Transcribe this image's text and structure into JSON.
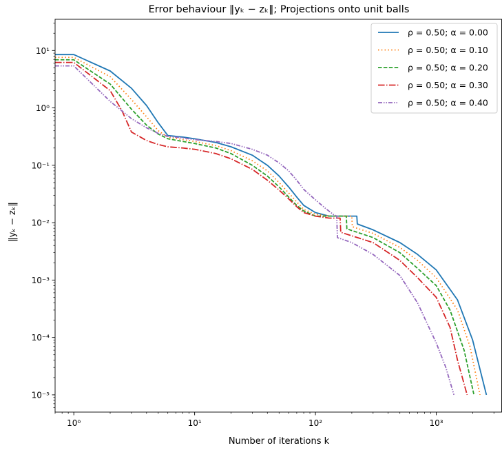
{
  "chart_data": {
    "type": "line",
    "title": "Error behaviour ‖yₖ − zₖ‖; Projections onto unit balls",
    "xlabel": "Number of iterations k",
    "ylabel": "‖yₖ − zₖ‖",
    "xscale": "log",
    "yscale": "log",
    "xlim": [
      0.7,
      3500
    ],
    "ylim": [
      5e-06,
      35
    ],
    "grid": false,
    "legend_position": "top-right",
    "x_ticks": [
      {
        "value": 1,
        "label": "10⁰"
      },
      {
        "value": 10,
        "label": "10¹"
      },
      {
        "value": 100,
        "label": "10²"
      },
      {
        "value": 1000,
        "label": "10³"
      }
    ],
    "y_ticks": [
      {
        "value": 10,
        "label": "10¹"
      },
      {
        "value": 1,
        "label": "10⁰"
      },
      {
        "value": 0.1,
        "label": "10⁻¹"
      },
      {
        "value": 0.01,
        "label": "10⁻²"
      },
      {
        "value": 0.001,
        "label": "10⁻³"
      },
      {
        "value": 0.0001,
        "label": "10⁻⁴"
      },
      {
        "value": 1e-05,
        "label": "10⁻⁵"
      }
    ],
    "series": [
      {
        "name": "ρ = 0.50; α = 0.00",
        "color": "#1f77b4",
        "dash": "solid",
        "points": [
          [
            0.7,
            8.5
          ],
          [
            1,
            8.5
          ],
          [
            2,
            4.4
          ],
          [
            3,
            2.2
          ],
          [
            4,
            1.1
          ],
          [
            5,
            0.55
          ],
          [
            6,
            0.33
          ],
          [
            8,
            0.31
          ],
          [
            10,
            0.29
          ],
          [
            15,
            0.25
          ],
          [
            20,
            0.21
          ],
          [
            30,
            0.15
          ],
          [
            40,
            0.1
          ],
          [
            50,
            0.065
          ],
          [
            60,
            0.042
          ],
          [
            70,
            0.028
          ],
          [
            80,
            0.02
          ],
          [
            100,
            0.015
          ],
          [
            130,
            0.013
          ],
          [
            180,
            0.013
          ],
          [
            220,
            0.013
          ],
          [
            222,
            0.0095
          ],
          [
            300,
            0.0075
          ],
          [
            500,
            0.0045
          ],
          [
            700,
            0.0028
          ],
          [
            1000,
            0.0015
          ],
          [
            1500,
            0.00045
          ],
          [
            2000,
            9e-05
          ],
          [
            2600,
            1e-05
          ]
        ]
      },
      {
        "name": "ρ = 0.50; α = 0.10",
        "color": "#ff7f0e",
        "dash": "dotted",
        "points": [
          [
            0.7,
            7.6
          ],
          [
            1,
            7.6
          ],
          [
            2,
            3.5
          ],
          [
            3,
            1.4
          ],
          [
            4,
            0.7
          ],
          [
            5,
            0.4
          ],
          [
            6,
            0.31
          ],
          [
            8,
            0.28
          ],
          [
            10,
            0.26
          ],
          [
            15,
            0.22
          ],
          [
            20,
            0.18
          ],
          [
            30,
            0.12
          ],
          [
            40,
            0.08
          ],
          [
            50,
            0.05
          ],
          [
            60,
            0.033
          ],
          [
            70,
            0.023
          ],
          [
            80,
            0.017
          ],
          [
            100,
            0.014
          ],
          [
            130,
            0.013
          ],
          [
            170,
            0.013
          ],
          [
            200,
            0.013
          ],
          [
            202,
            0.0085
          ],
          [
            300,
            0.0065
          ],
          [
            500,
            0.0037
          ],
          [
            700,
            0.0022
          ],
          [
            1000,
            0.0011
          ],
          [
            1500,
            0.0003
          ],
          [
            1900,
            7e-05
          ],
          [
            2300,
            1e-05
          ]
        ]
      },
      {
        "name": "ρ = 0.50; α = 0.20",
        "color": "#2ca02c",
        "dash": "dashed",
        "points": [
          [
            0.7,
            6.9
          ],
          [
            1,
            6.9
          ],
          [
            2,
            2.6
          ],
          [
            3,
            0.95
          ],
          [
            4,
            0.5
          ],
          [
            5,
            0.35
          ],
          [
            6,
            0.29
          ],
          [
            8,
            0.26
          ],
          [
            10,
            0.24
          ],
          [
            15,
            0.2
          ],
          [
            20,
            0.16
          ],
          [
            30,
            0.1
          ],
          [
            40,
            0.065
          ],
          [
            50,
            0.042
          ],
          [
            60,
            0.028
          ],
          [
            70,
            0.02
          ],
          [
            80,
            0.016
          ],
          [
            100,
            0.013
          ],
          [
            130,
            0.013
          ],
          [
            180,
            0.013
          ],
          [
            182,
            0.0078
          ],
          [
            300,
            0.0055
          ],
          [
            500,
            0.003
          ],
          [
            700,
            0.0016
          ],
          [
            1000,
            0.0008
          ],
          [
            1300,
            0.0003
          ],
          [
            1700,
            6e-05
          ],
          [
            2050,
            1e-05
          ]
        ]
      },
      {
        "name": "ρ = 0.50; α = 0.30",
        "color": "#d62728",
        "dash": "dashdot",
        "points": [
          [
            0.7,
            6.2
          ],
          [
            1,
            6.2
          ],
          [
            2,
            2
          ],
          [
            2.5,
            0.9
          ],
          [
            3,
            0.38
          ],
          [
            4,
            0.27
          ],
          [
            5,
            0.23
          ],
          [
            6,
            0.21
          ],
          [
            8,
            0.2
          ],
          [
            10,
            0.19
          ],
          [
            15,
            0.16
          ],
          [
            20,
            0.13
          ],
          [
            30,
            0.085
          ],
          [
            40,
            0.055
          ],
          [
            50,
            0.037
          ],
          [
            60,
            0.026
          ],
          [
            70,
            0.019
          ],
          [
            80,
            0.015
          ],
          [
            100,
            0.013
          ],
          [
            130,
            0.012
          ],
          [
            160,
            0.012
          ],
          [
            162,
            0.0068
          ],
          [
            300,
            0.0045
          ],
          [
            500,
            0.0022
          ],
          [
            700,
            0.0011
          ],
          [
            1000,
            0.0005
          ],
          [
            1300,
            0.00015
          ],
          [
            1500,
            4e-05
          ],
          [
            1800,
            1e-05
          ]
        ]
      },
      {
        "name": "ρ = 0.50; α = 0.40",
        "color": "#9467bd",
        "dash": "dashdotdot",
        "points": [
          [
            0.7,
            5.4
          ],
          [
            1,
            5.4
          ],
          [
            2,
            1.3
          ],
          [
            3,
            0.65
          ],
          [
            4,
            0.45
          ],
          [
            5,
            0.36
          ],
          [
            6,
            0.32
          ],
          [
            8,
            0.3
          ],
          [
            10,
            0.28
          ],
          [
            15,
            0.26
          ],
          [
            20,
            0.24
          ],
          [
            30,
            0.19
          ],
          [
            40,
            0.15
          ],
          [
            50,
            0.11
          ],
          [
            60,
            0.08
          ],
          [
            70,
            0.055
          ],
          [
            80,
            0.038
          ],
          [
            100,
            0.025
          ],
          [
            120,
            0.018
          ],
          [
            140,
            0.014
          ],
          [
            150,
            0.013
          ],
          [
            152,
            0.0055
          ],
          [
            200,
            0.0045
          ],
          [
            300,
            0.0028
          ],
          [
            500,
            0.0012
          ],
          [
            700,
            0.0004
          ],
          [
            1000,
            8e-05
          ],
          [
            1200,
            3e-05
          ],
          [
            1400,
            1e-05
          ]
        ]
      }
    ]
  }
}
